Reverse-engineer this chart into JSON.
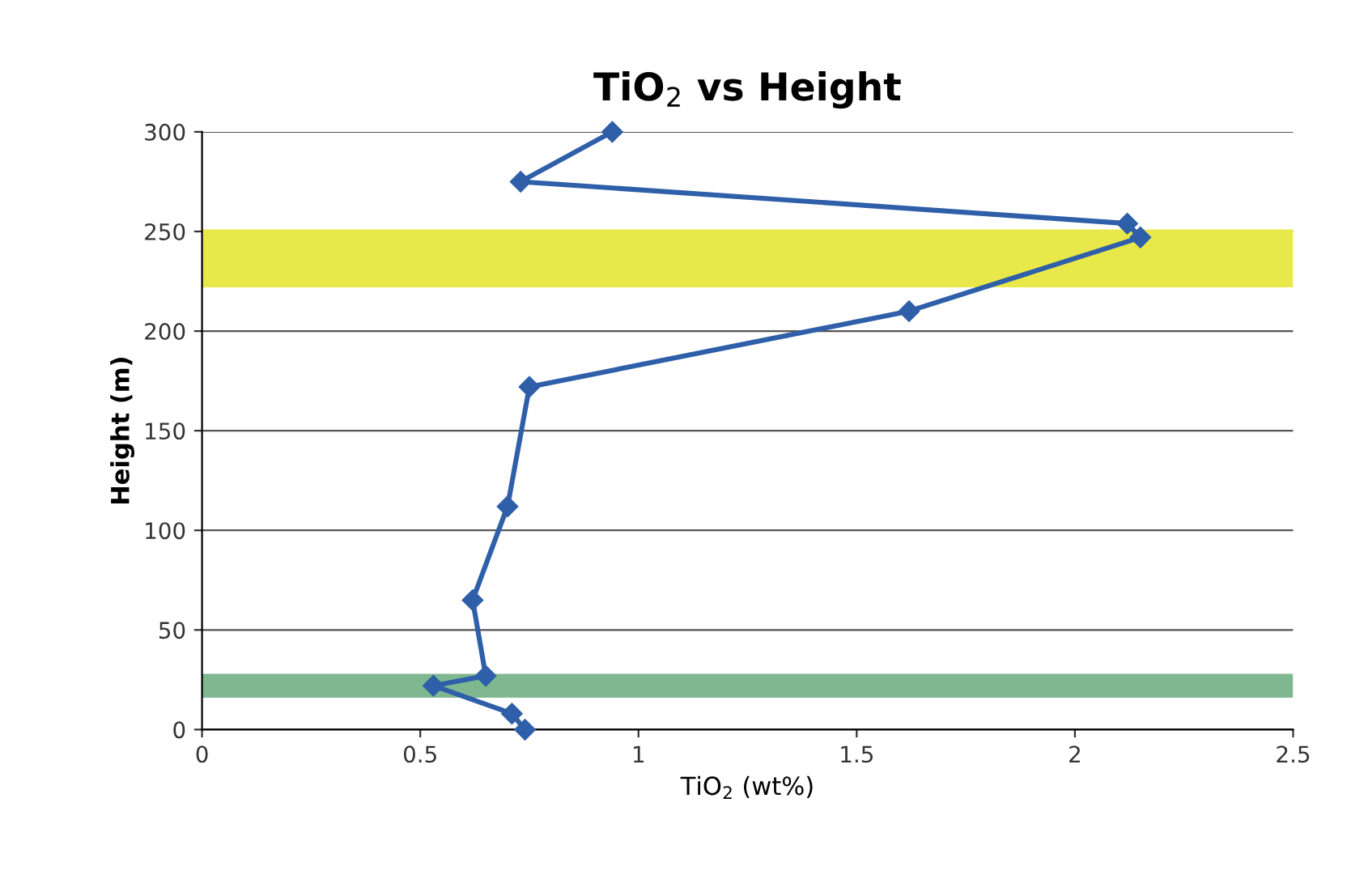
{
  "chart_data": {
    "type": "line",
    "title": "TiO$_{2}$ vs Height",
    "xlabel": "TiO$_{2}$ (wt%)",
    "ylabel": "Height (m)",
    "series": [
      {
        "color": "#2e5fa8",
        "x": [
          0.94,
          0.73,
          2.12,
          2.15,
          1.62,
          0.75,
          0.7,
          0.62,
          0.65,
          0.53,
          0.71,
          0.74
        ],
        "values": [
          300,
          275,
          254,
          247,
          210,
          172,
          112,
          65,
          27,
          22,
          8,
          0
        ]
      }
    ],
    "xlim": [
      0,
      2.5
    ],
    "xticks": [
      0,
      0.5,
      1,
      1.5,
      2,
      2.5
    ],
    "ylim": [
      0,
      300
    ],
    "yticks": [
      0,
      50,
      100,
      150,
      200,
      250,
      300
    ],
    "grid": "y",
    "marker": "diamond",
    "line_style": "solid",
    "legend": false,
    "bands": [
      {
        "axis": "y",
        "from": 222,
        "to": 251,
        "color": "#e8e84a"
      },
      {
        "axis": "y",
        "from": 16,
        "to": 28,
        "color": "#7fb890"
      }
    ]
  }
}
